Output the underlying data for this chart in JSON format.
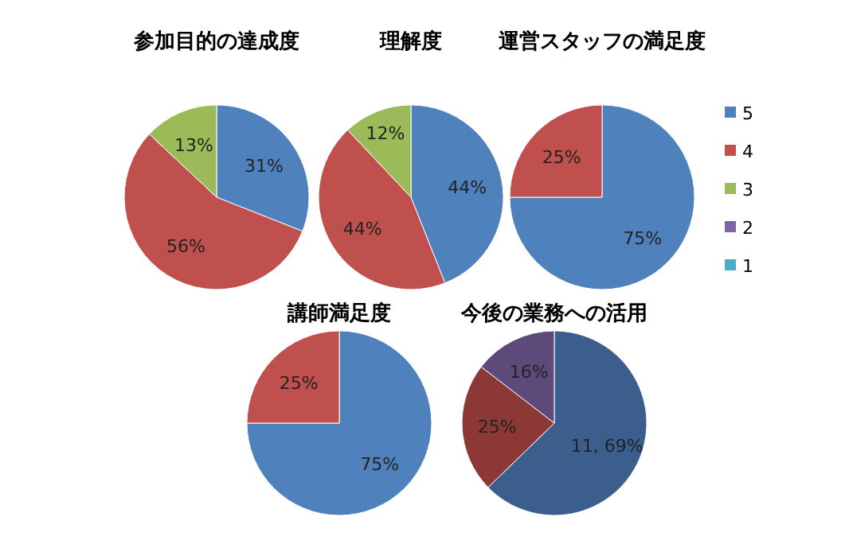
{
  "chart_data": [
    {
      "type": "pie",
      "title": "参加目的の達成度",
      "categories": [
        null,
        null,
        null
      ],
      "values": [
        31,
        56,
        13
      ],
      "colors": [
        "#4f81bd",
        "#c0504d",
        "#9bbb59"
      ],
      "value_labels": [
        "31%",
        "56%",
        "13%"
      ],
      "legend": false
    },
    {
      "type": "pie",
      "title": "理解度",
      "categories": [
        null,
        null,
        null
      ],
      "values": [
        44,
        44,
        12
      ],
      "colors": [
        "#4f81bd",
        "#c0504d",
        "#9bbb59"
      ],
      "value_labels": [
        "44%",
        "44%",
        "12%"
      ],
      "legend": false
    },
    {
      "type": "pie",
      "title": "運営スタッフの満足度",
      "categories": [
        "5",
        "4",
        "3",
        "2",
        "1"
      ],
      "values": [
        75,
        25,
        0,
        0,
        0
      ],
      "colors": [
        "#4f81bd",
        "#c0504d",
        "#9bbb59",
        "#8064a2",
        "#4bacc6"
      ],
      "value_labels": [
        "75%",
        "25%",
        null,
        null,
        null
      ],
      "legend": "right"
    },
    {
      "type": "pie",
      "title": "講師満足度",
      "categories": [
        null,
        null
      ],
      "values": [
        75,
        25
      ],
      "colors": [
        "#4f81bd",
        "#c0504d"
      ],
      "value_labels": [
        "75%",
        "25%"
      ],
      "legend": false
    },
    {
      "type": "pie",
      "title": "今後の業務への活用",
      "categories": [
        null,
        null,
        null
      ],
      "values": [
        69,
        25,
        16
      ],
      "colors": [
        "#3b5e8c",
        "#8c3836",
        "#5d4a7b"
      ],
      "value_labels": [
        "11, 69%",
        "25%",
        "16%"
      ],
      "legend": false
    }
  ]
}
